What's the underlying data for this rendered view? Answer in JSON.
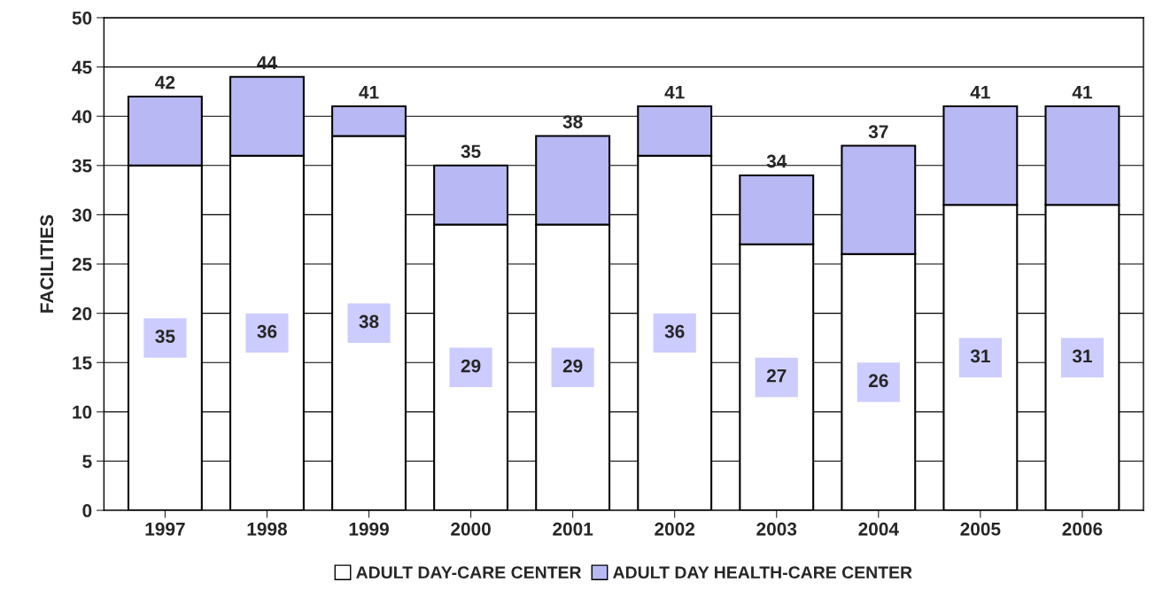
{
  "chart_data": {
    "type": "bar",
    "stacked": true,
    "ylabel": "FACILITIES",
    "categories": [
      "1997",
      "1998",
      "1999",
      "2000",
      "2001",
      "2002",
      "2003",
      "2004",
      "2005",
      "2006"
    ],
    "series": [
      {
        "name": "ADULT DAY-CARE CENTER",
        "color": "#ffffff",
        "values": [
          35,
          36,
          38,
          29,
          29,
          36,
          27,
          26,
          31,
          31
        ],
        "value_labels": [
          "35",
          "36",
          "38",
          "29",
          "29",
          "36",
          "27",
          "26",
          "31",
          "31"
        ]
      },
      {
        "name": "ADULT DAY HEALTH-CARE CENTER",
        "color": "#b8b8f4",
        "values": [
          7,
          8,
          3,
          6,
          9,
          5,
          7,
          11,
          10,
          10
        ]
      }
    ],
    "totals": [
      "42",
      "44",
      "41",
      "35",
      "38",
      "41",
      "34",
      "37",
      "41",
      "41"
    ],
    "ylim": [
      0,
      50
    ],
    "yticks": [
      0,
      5,
      10,
      15,
      20,
      25,
      30,
      35,
      40,
      45,
      50
    ],
    "grid": "y",
    "legend": "bottom"
  }
}
